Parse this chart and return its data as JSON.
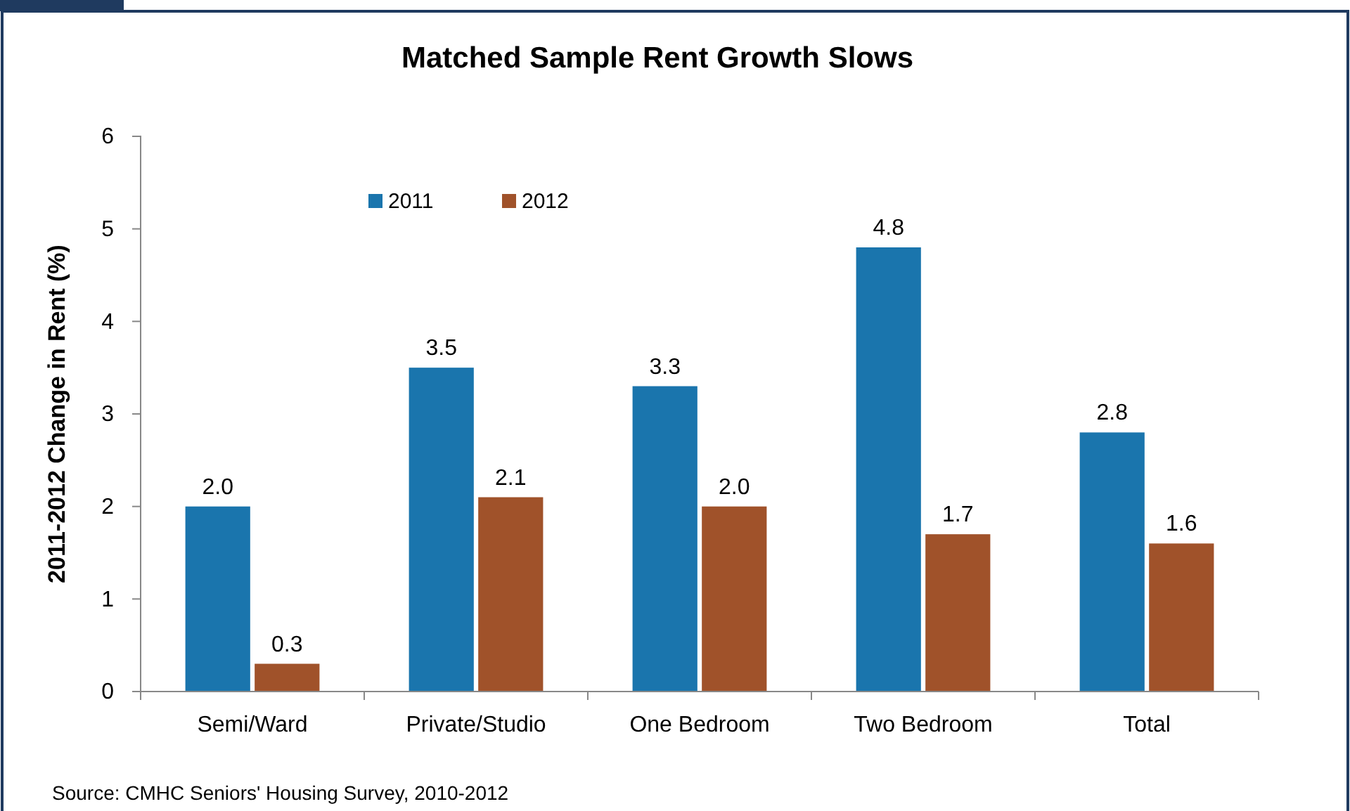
{
  "chart_data": {
    "type": "bar",
    "title": "Matched Sample Rent Growth Slows",
    "ylabel": "2011-2012 Change in Rent (%)",
    "categories": [
      "Semi/Ward",
      "Private/Studio",
      "One Bedroom",
      "Two Bedroom",
      "Total"
    ],
    "series": [
      {
        "name": "2011",
        "color": "#1a75ad",
        "values": [
          2.0,
          3.5,
          3.3,
          4.8,
          2.8
        ],
        "value_labels": [
          "2.0",
          "3.5",
          "3.3",
          "4.8",
          "2.8"
        ]
      },
      {
        "name": "2012",
        "color": "#a0522a",
        "values": [
          0.3,
          2.1,
          2.0,
          1.7,
          1.6
        ],
        "value_labels": [
          "0.3",
          "2.1",
          "2.0",
          "1.7",
          "1.6"
        ]
      }
    ],
    "ylim": [
      0,
      6
    ],
    "yticks": [
      0,
      1,
      2,
      3,
      4,
      5,
      6
    ],
    "legend": "top",
    "grid": false,
    "annotations": [
      "Source: CMHC Seniors' Housing Survey, 2010-2012"
    ]
  }
}
